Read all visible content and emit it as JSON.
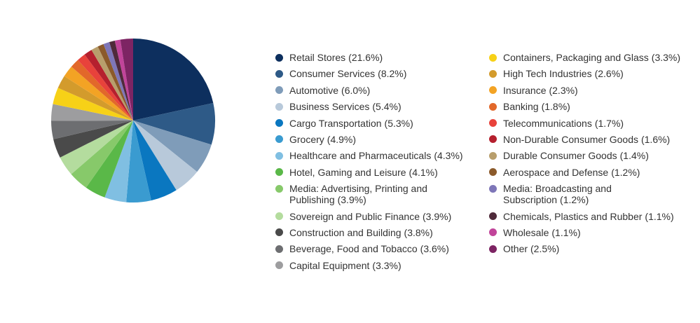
{
  "chart_data": {
    "type": "pie",
    "categories": [
      "Retail Stores",
      "Consumer Services",
      "Automotive",
      "Business Services",
      "Cargo Transportation",
      "Grocery",
      "Healthcare and Pharmaceuticals",
      "Hotel, Gaming and Leisure",
      "Media: Advertising, Printing and Publishing",
      "Sovereign and Public Finance",
      "Construction and Building",
      "Beverage, Food and Tobacco",
      "Capital Equipment",
      "Containers, Packaging and Glass",
      "High Tech Industries",
      "Insurance",
      "Banking",
      "Telecommunications",
      "Non-Durable Consumer Goods",
      "Durable Consumer Goods",
      "Aerospace and Defense",
      "Media: Broadcasting and Subscription",
      "Chemicals, Plastics and Rubber",
      "Wholesale",
      "Other"
    ],
    "values": [
      21.6,
      8.2,
      6.0,
      5.4,
      5.3,
      4.9,
      4.3,
      4.1,
      3.9,
      3.9,
      3.8,
      3.6,
      3.3,
      3.3,
      2.6,
      2.3,
      1.8,
      1.7,
      1.6,
      1.4,
      1.2,
      1.2,
      1.1,
      1.1,
      2.5
    ],
    "value_labels": [
      "(21.6%)",
      "(8.2%)",
      "(6.0%)",
      "(5.4%)",
      "(5.3%)",
      "(4.9%)",
      "(4.3%)",
      "(4.1%)",
      "(3.9%)",
      "(3.9%)",
      "(3.8%)",
      "(3.6%)",
      "(3.3%)",
      "(3.3%)",
      "(2.6%)",
      "(2.3%)",
      "(1.8%)",
      "(1.7%)",
      "(1.6%)",
      "(1.4%)",
      "(1.2%)",
      "(1.2%)",
      "(1.1%)",
      "(1.1%)",
      "(2.5%)"
    ],
    "colors": [
      "#0d2f5e",
      "#2e5a87",
      "#7f9cb9",
      "#b8c9da",
      "#0a77c0",
      "#3a9bd0",
      "#80bfe2",
      "#5ab848",
      "#87c96a",
      "#b4dc9e",
      "#4a4a4a",
      "#6d6e71",
      "#9d9d9f",
      "#f7d117",
      "#d39b2c",
      "#f3a324",
      "#e2682a",
      "#e8423b",
      "#b5202e",
      "#b89e6c",
      "#8b5a2b",
      "#7e76b8",
      "#4f2a3a",
      "#c1449a",
      "#7d2463"
    ],
    "legend": "right"
  }
}
